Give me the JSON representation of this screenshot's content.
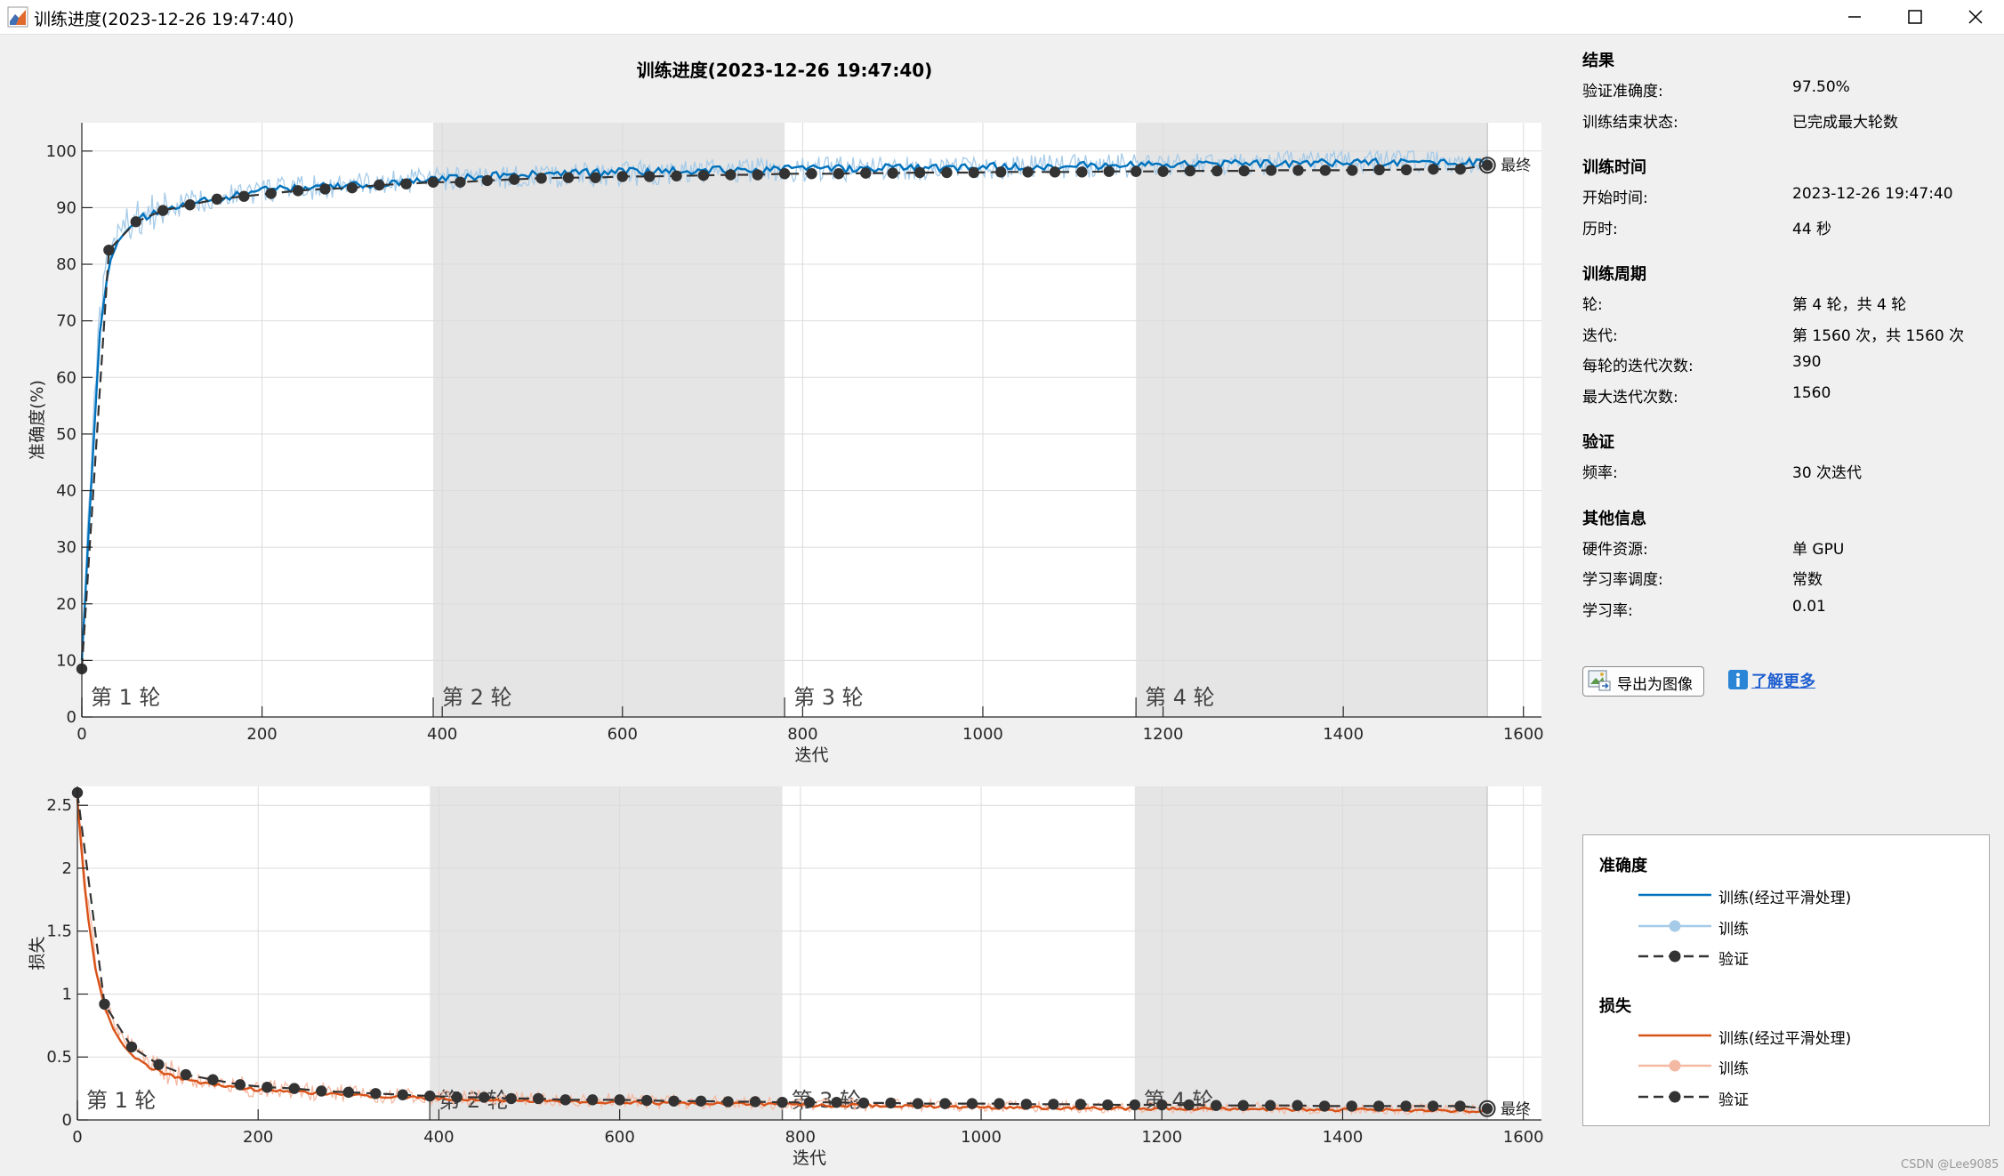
{
  "window": {
    "title": "训练进度(2023-12-26 19:47:40)",
    "icon": "matlab-icon"
  },
  "figure_title": "训练进度(2023-12-26 19:47:40)",
  "chart_data": [
    {
      "type": "line",
      "title": "训练进度(2023-12-26 19:47:40)",
      "xlabel": "迭代",
      "ylabel": "准确度(%)",
      "xlim": [
        0,
        1620
      ],
      "ylim": [
        0,
        105
      ],
      "xticks": [
        0,
        200,
        400,
        600,
        800,
        1000,
        1200,
        1400,
        1600
      ],
      "yticks": [
        0,
        10,
        20,
        30,
        40,
        50,
        60,
        70,
        80,
        90,
        100
      ],
      "grid": true,
      "epoch_bands": [
        {
          "label": "第 1 轮",
          "start": 0,
          "end": 390,
          "shaded": false
        },
        {
          "label": "第 2 轮",
          "start": 390,
          "end": 780,
          "shaded": true
        },
        {
          "label": "第 3 轮",
          "start": 780,
          "end": 1170,
          "shaded": false
        },
        {
          "label": "第 4 轮",
          "start": 1170,
          "end": 1560,
          "shaded": true
        }
      ],
      "final_label": "最终",
      "series": [
        {
          "name": "训练(经过平滑处理)",
          "color": "#0072bd",
          "x": [
            0,
            10,
            20,
            30,
            40,
            50,
            60,
            70,
            80,
            90,
            100,
            120,
            140,
            160,
            180,
            200,
            250,
            300,
            350,
            400,
            450,
            500,
            600,
            700,
            800,
            900,
            1000,
            1100,
            1200,
            1300,
            1400,
            1500,
            1560
          ],
          "y": [
            10,
            40,
            68,
            80,
            84,
            86,
            87.5,
            88.5,
            89,
            89.5,
            90,
            91,
            91.5,
            92,
            92.5,
            93,
            93.5,
            94,
            94.5,
            95,
            95.5,
            96,
            96.3,
            96.6,
            96.8,
            97,
            97.2,
            97.4,
            97.6,
            97.8,
            98,
            98,
            98
          ]
        },
        {
          "name": "训练",
          "color": "#a6cbe8",
          "x": [
            0,
            10,
            20,
            30,
            40,
            50,
            60,
            80,
            100,
            150,
            200,
            300,
            400,
            600,
            800,
            1000,
            1200,
            1400,
            1560
          ],
          "y": [
            10,
            45,
            70,
            82,
            85,
            87,
            88,
            89,
            90,
            92,
            93,
            94,
            95,
            96,
            96.8,
            97.2,
            97.6,
            98,
            98
          ]
        },
        {
          "name": "验证",
          "color": "#333333",
          "x": [
            0,
            30,
            60,
            90,
            120,
            150,
            180,
            210,
            240,
            270,
            300,
            330,
            360,
            390,
            420,
            450,
            480,
            510,
            540,
            570,
            600,
            630,
            660,
            690,
            720,
            750,
            780,
            810,
            840,
            870,
            900,
            930,
            960,
            990,
            1020,
            1050,
            1080,
            1110,
            1140,
            1170,
            1200,
            1230,
            1260,
            1290,
            1320,
            1350,
            1380,
            1410,
            1440,
            1470,
            1500,
            1530,
            1560
          ],
          "y": [
            8.5,
            82.5,
            87.5,
            89.5,
            90.5,
            91.5,
            92.0,
            92.5,
            93.0,
            93.3,
            93.5,
            94.0,
            94.2,
            94.5,
            94.5,
            94.8,
            95.0,
            95.2,
            95.3,
            95.3,
            95.5,
            95.5,
            95.6,
            95.7,
            95.8,
            95.8,
            96.0,
            96.0,
            96.0,
            96.1,
            96.1,
            96.2,
            96.2,
            96.2,
            96.3,
            96.3,
            96.3,
            96.3,
            96.4,
            96.4,
            96.4,
            96.5,
            96.5,
            96.5,
            96.6,
            96.6,
            96.6,
            96.6,
            96.7,
            96.7,
            96.8,
            96.8,
            97.5
          ]
        }
      ]
    },
    {
      "type": "line",
      "xlabel": "迭代",
      "ylabel": "损失",
      "xlim": [
        0,
        1620
      ],
      "ylim": [
        0,
        2.65
      ],
      "xticks": [
        0,
        200,
        400,
        600,
        800,
        1000,
        1200,
        1400,
        1600
      ],
      "yticks": [
        0,
        0.5,
        1,
        1.5,
        2,
        2.5
      ],
      "ytick_labels": [
        "0",
        "0.5",
        "1",
        "1.5",
        "2",
        "2.5"
      ],
      "grid": true,
      "epoch_bands": [
        {
          "label": "第 1 轮",
          "start": 0,
          "end": 390,
          "shaded": false
        },
        {
          "label": "第 2 轮",
          "start": 390,
          "end": 780,
          "shaded": true
        },
        {
          "label": "第 3 轮",
          "start": 780,
          "end": 1170,
          "shaded": false
        },
        {
          "label": "第 4 轮",
          "start": 1170,
          "end": 1560,
          "shaded": true
        }
      ],
      "final_label": "最终",
      "series": [
        {
          "name": "训练(经过平滑处理)",
          "color": "#d95319",
          "x": [
            0,
            5,
            10,
            20,
            30,
            40,
            50,
            60,
            80,
            100,
            120,
            150,
            200,
            250,
            300,
            400,
            500,
            600,
            700,
            800,
            900,
            1000,
            1100,
            1200,
            1300,
            1400,
            1500,
            1560
          ],
          "y": [
            2.55,
            2.1,
            1.7,
            1.2,
            0.9,
            0.72,
            0.6,
            0.52,
            0.42,
            0.36,
            0.32,
            0.28,
            0.24,
            0.22,
            0.2,
            0.17,
            0.15,
            0.14,
            0.13,
            0.12,
            0.11,
            0.1,
            0.095,
            0.09,
            0.085,
            0.08,
            0.075,
            0.07
          ]
        },
        {
          "name": "训练",
          "color": "#f4b9a3",
          "x": [
            0,
            10,
            20,
            30,
            50,
            80,
            100,
            150,
            200,
            300,
            400,
            600,
            800,
            1000,
            1200,
            1400,
            1560
          ],
          "y": [
            2.55,
            1.8,
            1.25,
            0.95,
            0.65,
            0.45,
            0.38,
            0.3,
            0.25,
            0.21,
            0.18,
            0.15,
            0.13,
            0.11,
            0.1,
            0.09,
            0.08
          ]
        },
        {
          "name": "验证",
          "color": "#333333",
          "x": [
            0,
            30,
            60,
            90,
            120,
            150,
            180,
            210,
            240,
            270,
            300,
            330,
            360,
            390,
            420,
            450,
            480,
            510,
            540,
            570,
            600,
            630,
            660,
            690,
            720,
            750,
            780,
            810,
            840,
            870,
            900,
            930,
            960,
            990,
            1020,
            1050,
            1080,
            1110,
            1140,
            1170,
            1200,
            1230,
            1260,
            1290,
            1320,
            1350,
            1380,
            1410,
            1440,
            1470,
            1500,
            1530,
            1560
          ],
          "y": [
            2.6,
            0.92,
            0.58,
            0.44,
            0.36,
            0.32,
            0.28,
            0.26,
            0.25,
            0.23,
            0.22,
            0.21,
            0.2,
            0.19,
            0.18,
            0.18,
            0.17,
            0.17,
            0.16,
            0.16,
            0.16,
            0.155,
            0.15,
            0.15,
            0.145,
            0.145,
            0.14,
            0.14,
            0.14,
            0.135,
            0.135,
            0.13,
            0.13,
            0.13,
            0.13,
            0.125,
            0.125,
            0.125,
            0.12,
            0.12,
            0.12,
            0.12,
            0.115,
            0.115,
            0.115,
            0.115,
            0.11,
            0.11,
            0.11,
            0.11,
            0.11,
            0.11,
            0.09
          ]
        }
      ]
    }
  ],
  "info": {
    "sections": [
      {
        "title": "结果",
        "rows": [
          {
            "key": "验证准确度:",
            "value": "97.50%"
          },
          {
            "key": "训练结束状态:",
            "value": "已完成最大轮数"
          }
        ]
      },
      {
        "title": "训练时间",
        "rows": [
          {
            "key": "开始时间:",
            "value": "2023-12-26 19:47:40"
          },
          {
            "key": "历时:",
            "value": "44 秒"
          }
        ]
      },
      {
        "title": "训练周期",
        "rows": [
          {
            "key": "轮:",
            "value": "第 4 轮，共 4 轮"
          },
          {
            "key": "迭代:",
            "value": "第 1560 次，共 1560 次"
          },
          {
            "key": "每轮的迭代次数:",
            "value": "390"
          },
          {
            "key": "最大迭代次数:",
            "value": "1560"
          }
        ]
      },
      {
        "title": "验证",
        "rows": [
          {
            "key": "频率:",
            "value": "30 次迭代"
          }
        ]
      },
      {
        "title": "其他信息",
        "rows": [
          {
            "key": "硬件资源:",
            "value": "单 GPU"
          },
          {
            "key": "学习率调度:",
            "value": "常数"
          },
          {
            "key": "学习率:",
            "value": "0.01"
          }
        ]
      }
    ]
  },
  "actions": {
    "export_label": "导出为图像",
    "learn_more_label": "了解更多"
  },
  "legend": {
    "groups": [
      {
        "title": "准确度",
        "items": [
          {
            "label": "训练(经过平滑处理)",
            "style": "solid",
            "color": "#0072bd"
          },
          {
            "label": "训练",
            "style": "solid-dot",
            "color": "#a6cbe8"
          },
          {
            "label": "验证",
            "style": "dash-dot",
            "color": "#333333"
          }
        ]
      },
      {
        "title": "损失",
        "items": [
          {
            "label": "训练(经过平滑处理)",
            "style": "solid",
            "color": "#d95319"
          },
          {
            "label": "训练",
            "style": "solid-dot",
            "color": "#f4b9a3"
          },
          {
            "label": "验证",
            "style": "dash-dot",
            "color": "#333333"
          }
        ]
      }
    ]
  },
  "watermark": "CSDN @Lee9085"
}
